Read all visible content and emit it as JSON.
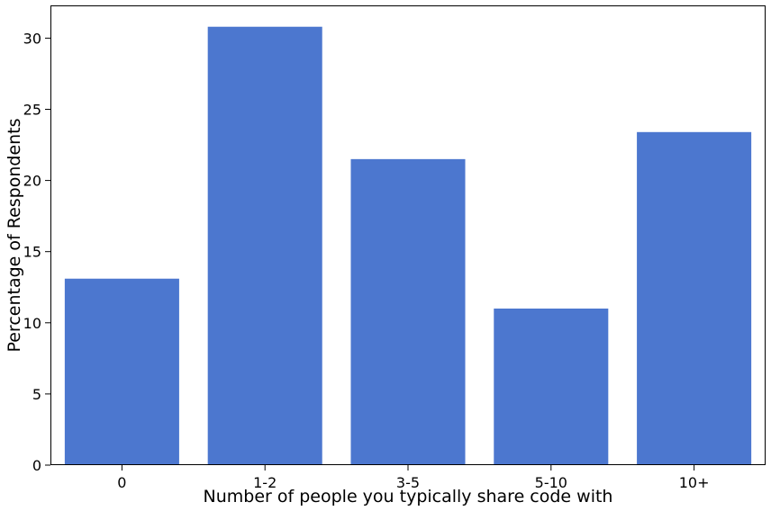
{
  "chart_data": {
    "type": "bar",
    "categories": [
      "0",
      "1-2",
      "3-5",
      "5-10",
      "10+"
    ],
    "values": [
      13.1,
      30.8,
      21.5,
      11.0,
      23.4
    ],
    "title": "",
    "xlabel": "Number of people you typically share code with",
    "ylabel": "Percentage of Respondents",
    "ylim": [
      0,
      32.3
    ],
    "yticks": [
      0,
      5,
      10,
      15,
      20,
      25,
      30
    ],
    "grid": false,
    "legend": "none",
    "bar_color": "#4c77cf"
  }
}
